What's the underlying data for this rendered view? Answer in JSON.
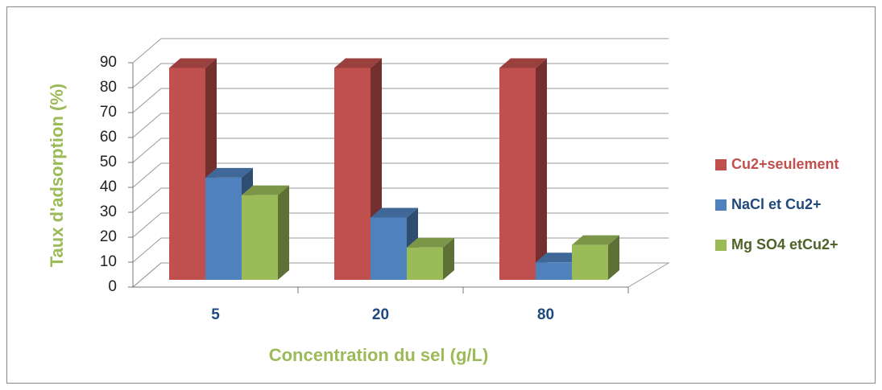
{
  "chart_data": {
    "type": "bar3d",
    "categories": [
      "5",
      "20",
      "80"
    ],
    "series": [
      {
        "name": "Cu2+seulement",
        "color": "#c0504d",
        "values": [
          85,
          85,
          85
        ]
      },
      {
        "name": "NaCl et Cu2+",
        "color": "#4f81bd",
        "values": [
          41,
          25,
          7
        ]
      },
      {
        "name": "Mg SO4 etCu2+",
        "color": "#9bbb59",
        "values": [
          34,
          13,
          14
        ]
      }
    ],
    "xlabel": "Concentration du sel (g/L)",
    "ylabel": "Taux d'adsorption (%)",
    "ylim": [
      0,
      90
    ],
    "yticks": [
      0,
      10,
      20,
      30,
      40,
      50,
      60,
      70,
      80,
      90
    ],
    "grid": true,
    "legend": "right"
  }
}
